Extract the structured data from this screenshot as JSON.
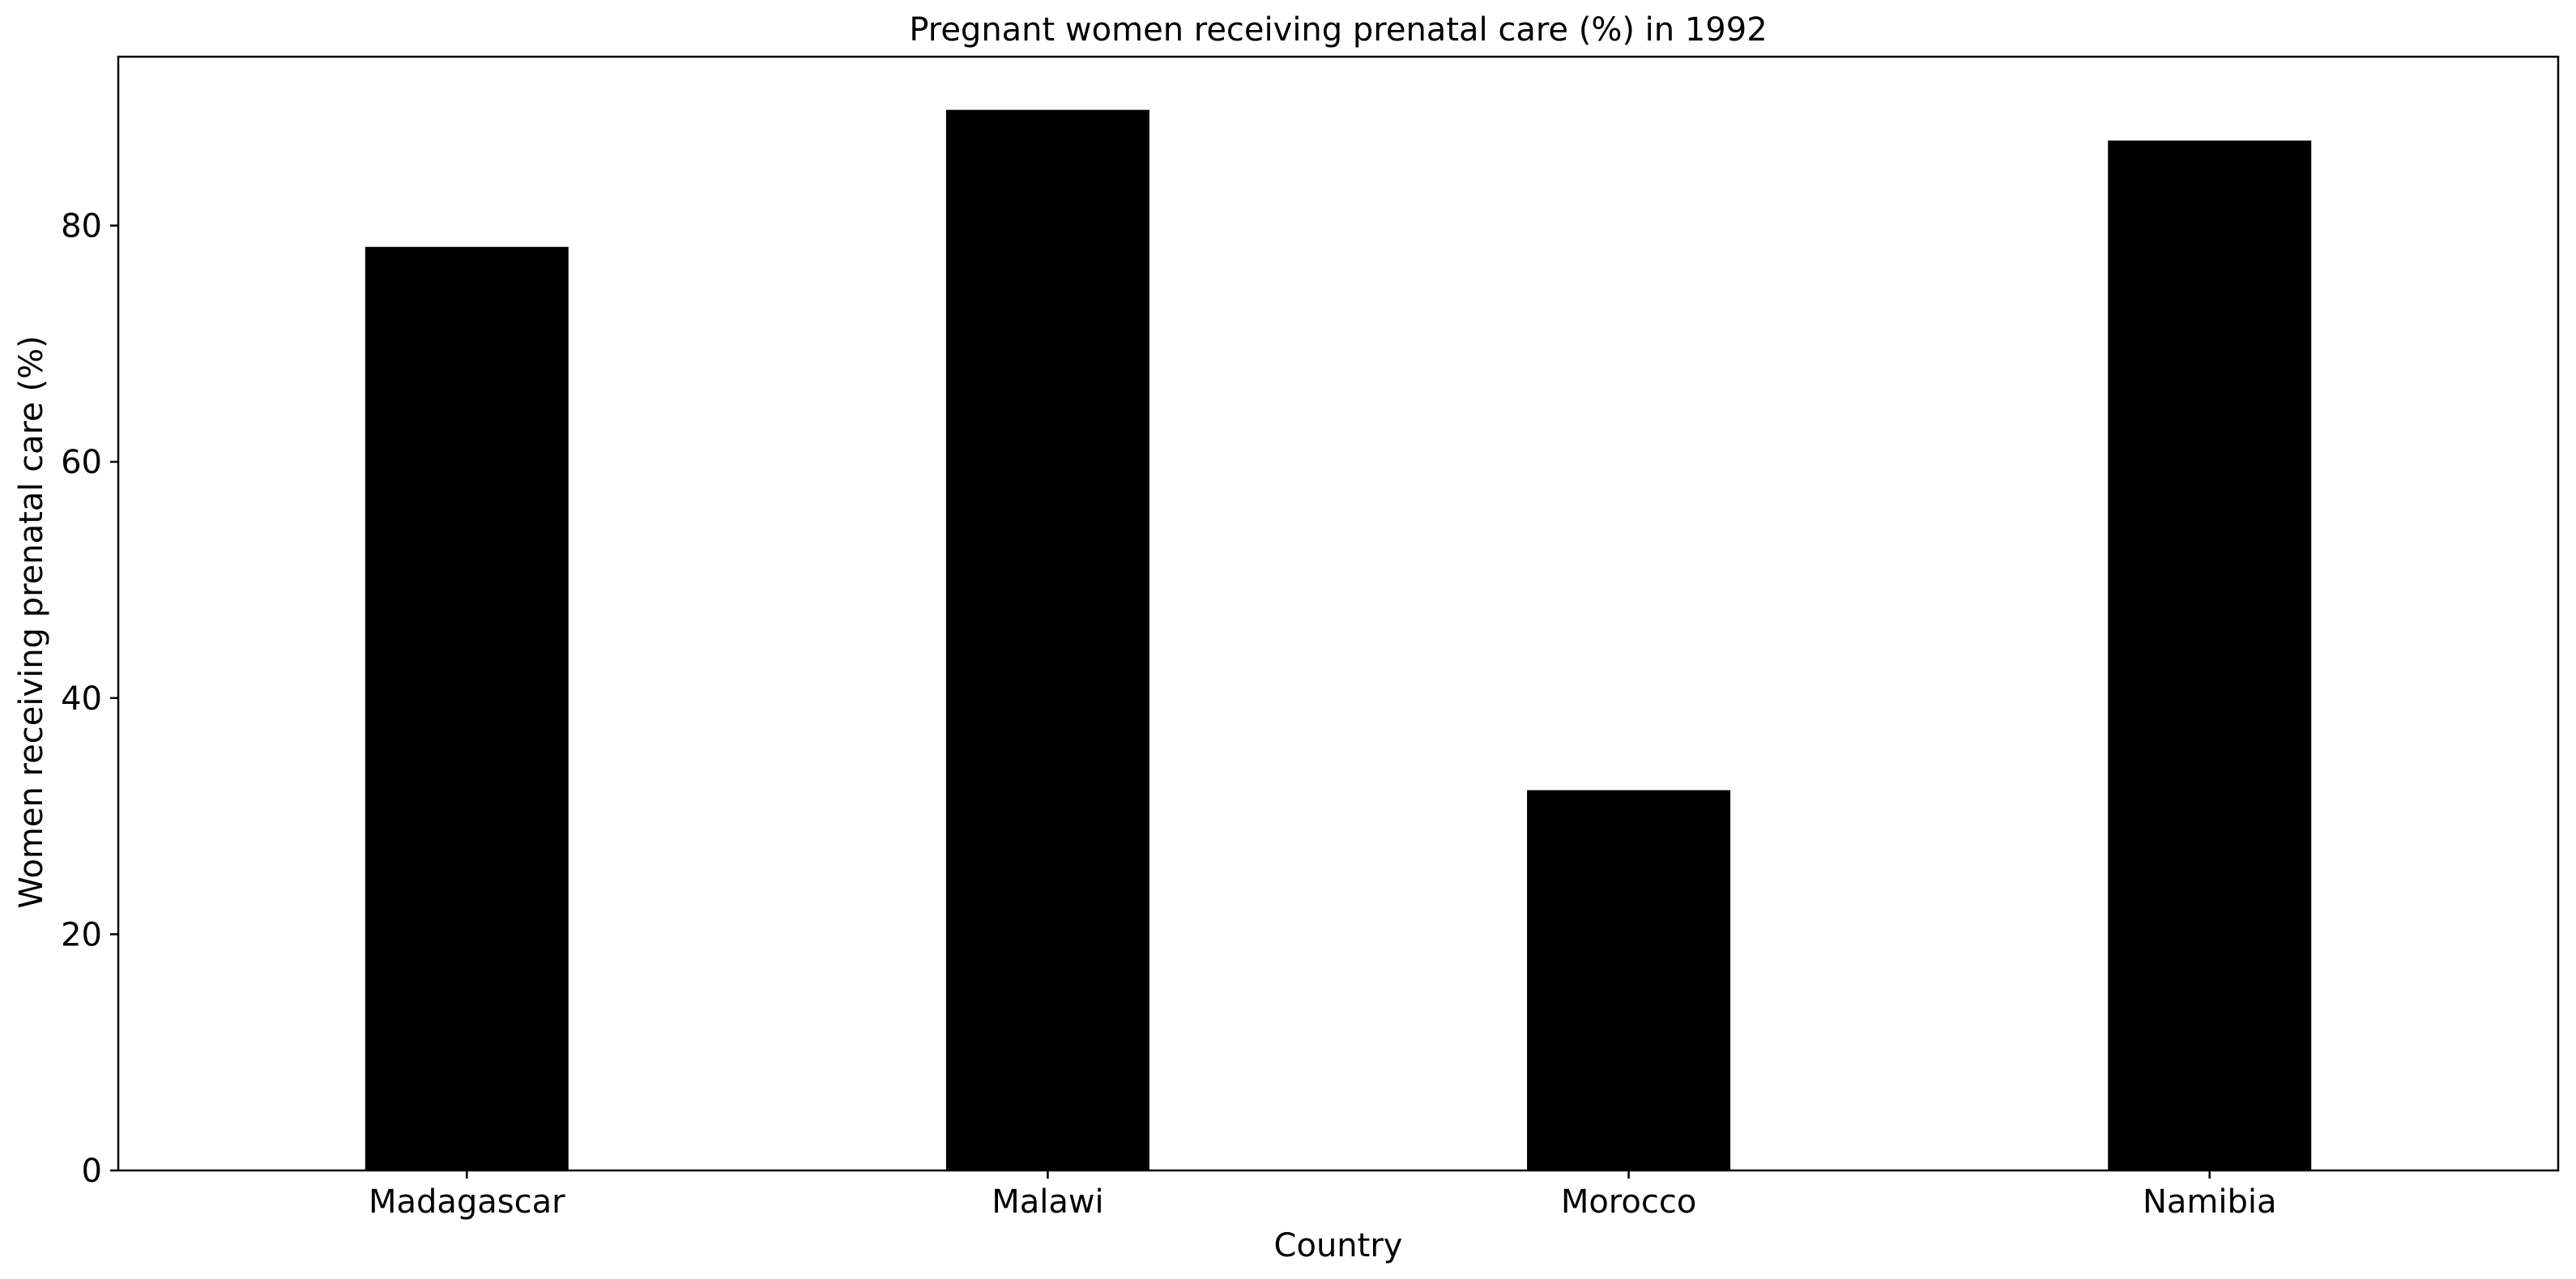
{
  "chart_data": {
    "type": "bar",
    "title": "Pregnant women receiving prenatal care (%) in 1992",
    "xlabel": "Country",
    "ylabel": "Women receiving prenatal care (%)",
    "categories": [
      "Madagascar",
      "Malawi",
      "Morocco",
      "Namibia"
    ],
    "values": [
      78.2,
      89.8,
      32.2,
      87.2
    ],
    "ylim": [
      0,
      94.3
    ],
    "yticks": [
      0,
      20,
      40,
      60,
      80
    ],
    "grid": false,
    "legend": "none",
    "bar_color": "#000000"
  }
}
